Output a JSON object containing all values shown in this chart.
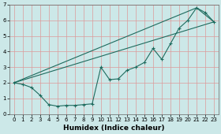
{
  "xlabel": "Humidex (Indice chaleur)",
  "background_color": "#cce8e8",
  "grid_color": "#dd9999",
  "line_color": "#1e6b5e",
  "xlim": [
    -0.5,
    23.5
  ],
  "ylim": [
    0,
    7
  ],
  "xticks": [
    0,
    1,
    2,
    3,
    4,
    5,
    6,
    7,
    8,
    9,
    10,
    11,
    12,
    13,
    14,
    15,
    16,
    17,
    18,
    19,
    20,
    21,
    22,
    23
  ],
  "yticks": [
    0,
    1,
    2,
    3,
    4,
    5,
    6,
    7
  ],
  "line1_x": [
    0,
    1,
    2,
    3,
    4,
    5,
    6,
    7,
    8,
    9,
    10,
    11,
    12,
    13,
    14,
    15,
    16,
    17,
    18,
    19,
    20,
    21,
    22,
    23
  ],
  "line1_y": [
    2.0,
    1.9,
    1.7,
    1.2,
    0.6,
    0.5,
    0.55,
    0.55,
    0.6,
    0.65,
    3.0,
    2.2,
    2.25,
    2.8,
    3.0,
    3.3,
    4.2,
    3.5,
    4.5,
    5.5,
    6.0,
    6.8,
    6.5,
    5.9
  ],
  "line2_x": [
    0,
    23
  ],
  "line2_y": [
    2.0,
    5.9
  ],
  "line3_x": [
    0,
    21,
    23
  ],
  "line3_y": [
    2.0,
    6.8,
    5.9
  ],
  "xlabel_fontsize": 6.5,
  "tick_fontsize": 5
}
